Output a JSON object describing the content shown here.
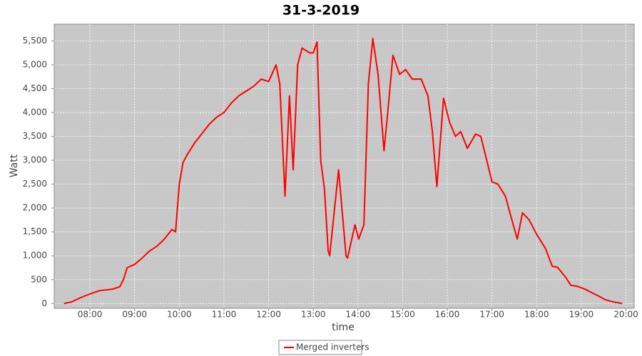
{
  "chart_data": {
    "type": "line",
    "title": "31-3-2019",
    "x_label": "time",
    "y_label": "Watt",
    "x": [
      "07:25",
      "07:35",
      "07:47",
      "08:00",
      "08:13",
      "08:30",
      "08:40",
      "08:45",
      "08:50",
      "09:00",
      "09:10",
      "09:20",
      "09:30",
      "09:40",
      "09:50",
      "09:55",
      "10:00",
      "10:05",
      "10:10",
      "10:20",
      "10:30",
      "10:40",
      "10:50",
      "11:00",
      "11:10",
      "11:20",
      "11:30",
      "11:40",
      "11:50",
      "12:00",
      "12:10",
      "12:15",
      "12:22",
      "12:28",
      "12:33",
      "12:39",
      "12:45",
      "12:55",
      "13:00",
      "13:05",
      "13:10",
      "13:15",
      "13:20",
      "13:22",
      "13:34",
      "13:44",
      "13:46",
      "13:56",
      "14:01",
      "14:08",
      "14:14",
      "14:20",
      "14:27",
      "14:35",
      "14:40",
      "14:47",
      "14:56",
      "15:04",
      "15:13",
      "15:25",
      "15:34",
      "15:40",
      "15:46",
      "15:55",
      "16:03",
      "16:11",
      "16:18",
      "16:27",
      "16:38",
      "16:45",
      "16:53",
      "17:00",
      "17:08",
      "17:18",
      "17:25",
      "17:34",
      "17:41",
      "17:50",
      "18:00",
      "18:12",
      "18:21",
      "18:28",
      "18:39",
      "18:46",
      "18:55",
      "19:05",
      "19:15",
      "19:24",
      "19:32",
      "19:44",
      "19:55"
    ],
    "series": [
      {
        "name": "Merged inverters",
        "color": "#ff0000",
        "values": [
          0,
          30,
          120,
          200,
          270,
          300,
          350,
          500,
          750,
          820,
          950,
          1100,
          1200,
          1350,
          1550,
          1500,
          2500,
          2950,
          3100,
          3350,
          3550,
          3750,
          3900,
          4000,
          4200,
          4350,
          4450,
          4550,
          4700,
          4650,
          5000,
          4600,
          2250,
          4350,
          2800,
          5000,
          5350,
          5250,
          5250,
          5480,
          3000,
          2400,
          1100,
          1000,
          2800,
          1000,
          950,
          1650,
          1350,
          1650,
          4600,
          5550,
          4800,
          3200,
          4000,
          5200,
          4800,
          4900,
          4700,
          4700,
          4350,
          3600,
          2450,
          4300,
          3800,
          3500,
          3600,
          3250,
          3550,
          3500,
          3000,
          2550,
          2500,
          2250,
          1850,
          1350,
          1900,
          1750,
          1450,
          1150,
          780,
          760,
          550,
          380,
          360,
          300,
          220,
          150,
          80,
          30,
          0
        ]
      }
    ],
    "xlim": [
      "07:12",
      "20:11"
    ],
    "xticks": [
      "08:00",
      "09:00",
      "10:00",
      "11:00",
      "12:00",
      "13:00",
      "14:00",
      "15:00",
      "16:00",
      "17:00",
      "18:00",
      "19:00",
      "20:00"
    ],
    "ylim": [
      -100,
      5850
    ],
    "yticks": [
      0,
      500,
      {
        "value": 1000,
        "label": "1,000"
      },
      {
        "value": 1500,
        "label": "1,500"
      },
      {
        "value": 2000,
        "label": "2,000"
      },
      {
        "value": 2500,
        "label": "2,500"
      },
      {
        "value": 3000,
        "label": "3,000"
      },
      {
        "value": 3500,
        "label": "3,500"
      },
      {
        "value": 4000,
        "label": "4,000"
      },
      {
        "value": 4500,
        "label": "4,500"
      },
      {
        "value": 5000,
        "label": "5,000"
      },
      {
        "value": 5500,
        "label": "5,500"
      }
    ],
    "grid": true,
    "legend": "bottom"
  }
}
